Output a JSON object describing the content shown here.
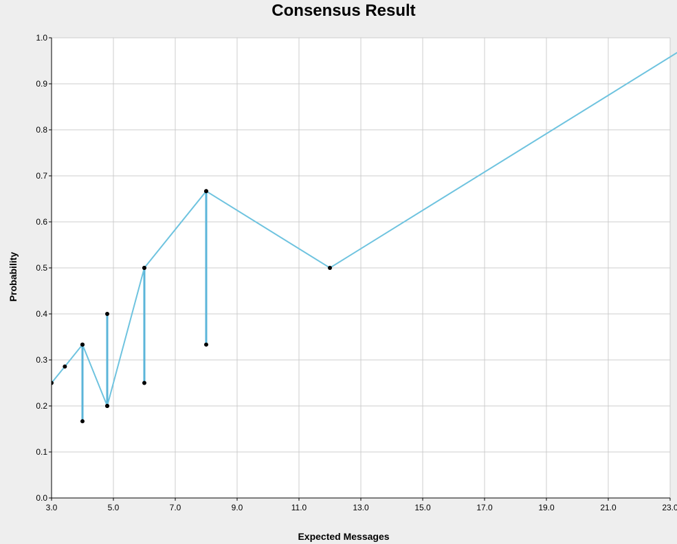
{
  "chart_data": {
    "type": "line",
    "title": "Consensus Result",
    "xlabel": "Expected Messages",
    "ylabel": "Probability",
    "xlim": [
      3.0,
      23.0
    ],
    "ylim": [
      0.0,
      1.0
    ],
    "xticks": [
      "3.0",
      "5.0",
      "7.0",
      "9.0",
      "11.0",
      "13.0",
      "15.0",
      "17.0",
      "19.0",
      "21.0",
      "23.0"
    ],
    "yticks": [
      "0.0",
      "0.1",
      "0.2",
      "0.3",
      "0.4",
      "0.5",
      "0.6",
      "0.7",
      "0.8",
      "0.9",
      "1.0"
    ],
    "grid": true,
    "legend": "none",
    "colors": {
      "line": "#6ec3df",
      "error_bar": "#5bb5d9",
      "point": "#000000",
      "grid": "#cccccc",
      "plot_bg": "#ffffff",
      "page_bg": "#eeeeee"
    },
    "series": [
      {
        "x": [
          3.0,
          3.43,
          4.0,
          4.8,
          6.0,
          8.0,
          12.0,
          24.0
        ],
        "y": [
          0.25,
          0.2857,
          0.3333,
          0.2,
          0.5,
          0.6667,
          0.5,
          1.0
        ],
        "markers": [
          true,
          true,
          true,
          true,
          true,
          true,
          true,
          false
        ]
      }
    ],
    "intervals": [
      {
        "x": 4.0,
        "low": 0.1667,
        "high": 0.3333
      },
      {
        "x": 4.8,
        "low": 0.2,
        "high": 0.4
      },
      {
        "x": 6.0,
        "low": 0.25,
        "high": 0.5
      },
      {
        "x": 8.0,
        "low": 0.3333,
        "high": 0.6667
      }
    ]
  }
}
